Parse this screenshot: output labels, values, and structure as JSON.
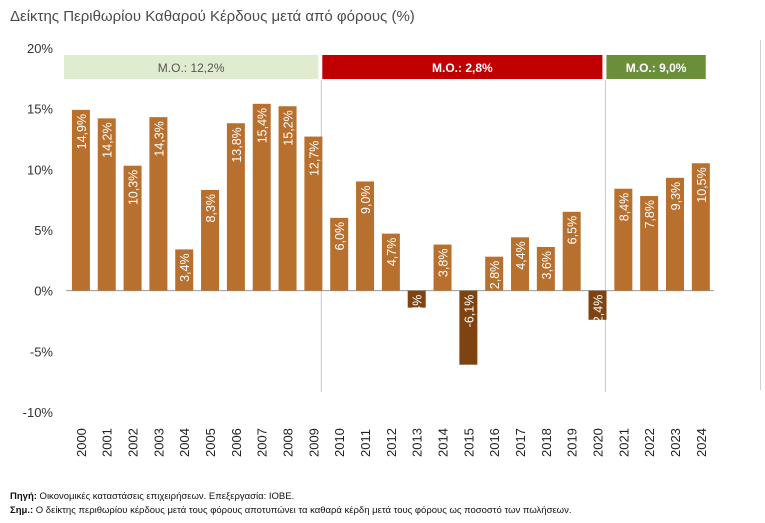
{
  "chart_data": {
    "type": "bar",
    "title": "Δείκτης Περιθωρίου Καθαρού Κέρδους μετά από φόρους (%)",
    "xlabel": "",
    "ylabel": "",
    "ylim": [
      -10,
      20
    ],
    "yticks": [
      "20%",
      "15%",
      "10%",
      "5%",
      "0%",
      "-5%",
      "-10%"
    ],
    "ytick_values": [
      20,
      15,
      10,
      5,
      0,
      -5,
      -10
    ],
    "grid": false,
    "categories": [
      "2000",
      "2001",
      "2002",
      "2003",
      "2004",
      "2005",
      "2006",
      "2007",
      "2008",
      "2009",
      "2010",
      "2011",
      "2012",
      "2013",
      "2014",
      "2015",
      "2016",
      "2017",
      "2018",
      "2019",
      "2020",
      "2021",
      "2022",
      "2023",
      "2024"
    ],
    "values": [
      14.9,
      14.2,
      10.3,
      14.3,
      3.4,
      8.3,
      13.8,
      15.4,
      15.2,
      12.7,
      6.0,
      9.0,
      4.7,
      -1.4,
      3.8,
      -6.1,
      2.8,
      4.4,
      3.6,
      6.5,
      -2.4,
      8.4,
      7.8,
      9.3,
      10.5
    ],
    "data_labels": [
      "14,9%",
      "14,2%",
      "10,3%",
      "14,3%",
      "3,4%",
      "8,3%",
      "13,8%",
      "15,4%",
      "15,2%",
      "12,7%",
      "6,0%",
      "9,0%",
      "4,7%",
      "-1,4%",
      "3,8%",
      "-6,1%",
      "2,8%",
      "4,4%",
      "3,6%",
      "6,5%",
      "-2,4%",
      "8,4%",
      "7,8%",
      "9,3%",
      "10,5%"
    ],
    "colors": {
      "positive": "#b8702f",
      "negative": "#7f4312"
    },
    "period_bands": [
      {
        "label": "Μ.Ο.: 12,2%",
        "from": "2000",
        "to": "2009",
        "bg": "#dfeccf",
        "fg": "#555555"
      },
      {
        "label": "Μ.Ο.: 2,8%",
        "from": "2010",
        "to": "2020",
        "bg": "#c00000",
        "fg": "#ffffff"
      },
      {
        "label": "Μ.Ο.: 9,0%",
        "from": "2021",
        "to": "2024",
        "bg": "#6b8e3a",
        "fg": "#ffffff"
      }
    ]
  },
  "footnotes": {
    "source_label": "Πηγή:",
    "source_text": " Οικονομικές καταστάσεις επιχειρήσεων. Επεξεργασία: ΙΟΒΕ.",
    "note_label": "Σημ.:",
    "note_text": " Ο δείκτης περιθωρίου κέρδους μετά τους φόρους αποτυπώνει τα καθαρά κέρδη μετά τους φόρους ως ποσοστό των πωλήσεων."
  }
}
